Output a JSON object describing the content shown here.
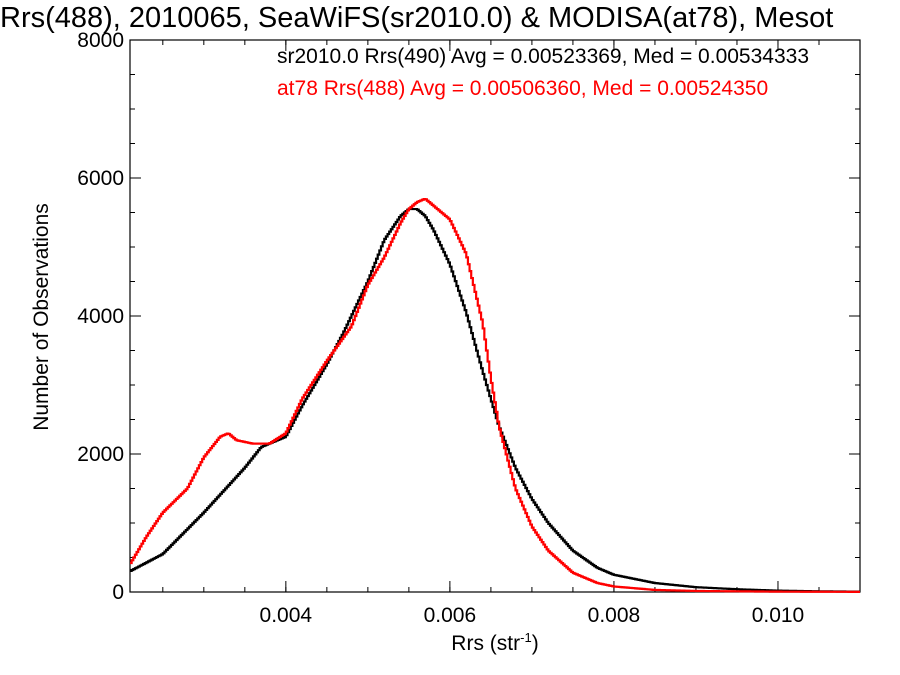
{
  "chart_data": {
    "type": "line",
    "title": "Rrs(488), 2010065, SeaWiFS(sr2010.0) & MODISA(at78), Mesot",
    "xlabel_main": "Rrs (str",
    "xlabel_exp": "-1",
    "xlabel_close": ")",
    "ylabel": "Number of Observations",
    "xlim": [
      0.0021,
      0.011
    ],
    "ylim": [
      0,
      8000
    ],
    "x_ticks": [
      {
        "value": 0.004,
        "label": "0.004"
      },
      {
        "value": 0.006,
        "label": "0.006"
      },
      {
        "value": 0.008,
        "label": "0.008"
      },
      {
        "value": 0.01,
        "label": "0.010"
      }
    ],
    "y_ticks": [
      {
        "value": 0,
        "label": "0"
      },
      {
        "value": 2000,
        "label": "2000"
      },
      {
        "value": 4000,
        "label": "4000"
      },
      {
        "value": 6000,
        "label": "6000"
      },
      {
        "value": 8000,
        "label": "8000"
      }
    ],
    "grid": false,
    "series": [
      {
        "legend": "sr2010.0 Rrs(490) Avg = 0.00523369, Med = 0.00534333",
        "color": "#000000",
        "x": [
          0.0021,
          0.0025,
          0.003,
          0.0035,
          0.0037,
          0.004,
          0.0042,
          0.0045,
          0.0047,
          0.005,
          0.0052,
          0.0054,
          0.0055,
          0.0056,
          0.0057,
          0.0058,
          0.006,
          0.0062,
          0.0064,
          0.0066,
          0.0068,
          0.007,
          0.0072,
          0.0075,
          0.0078,
          0.008,
          0.0085,
          0.009,
          0.0095,
          0.01,
          0.0105,
          0.011
        ],
        "values": [
          300,
          550,
          1150,
          1800,
          2100,
          2250,
          2700,
          3300,
          3750,
          4500,
          5100,
          5450,
          5550,
          5550,
          5450,
          5250,
          4750,
          4050,
          3200,
          2400,
          1800,
          1350,
          1000,
          600,
          350,
          250,
          130,
          70,
          40,
          20,
          10,
          5
        ]
      },
      {
        "legend": "at78 Rrs(488) Avg = 0.00506360, Med = 0.00524350",
        "color": "#ff0000",
        "x": [
          0.0021,
          0.0023,
          0.0025,
          0.0028,
          0.003,
          0.0032,
          0.0033,
          0.0034,
          0.0036,
          0.0038,
          0.004,
          0.0042,
          0.0045,
          0.0048,
          0.005,
          0.0052,
          0.0054,
          0.0055,
          0.0056,
          0.0057,
          0.0058,
          0.0059,
          0.006,
          0.0062,
          0.0064,
          0.0065,
          0.0066,
          0.0068,
          0.007,
          0.0072,
          0.0075,
          0.0078,
          0.008,
          0.0085,
          0.009,
          0.01,
          0.011
        ],
        "values": [
          400,
          800,
          1150,
          1500,
          1950,
          2250,
          2300,
          2200,
          2150,
          2150,
          2300,
          2800,
          3350,
          3850,
          4450,
          4850,
          5350,
          5550,
          5650,
          5700,
          5600,
          5500,
          5400,
          4900,
          3900,
          3100,
          2400,
          1500,
          950,
          600,
          280,
          130,
          80,
          30,
          15,
          5,
          2
        ]
      }
    ]
  }
}
